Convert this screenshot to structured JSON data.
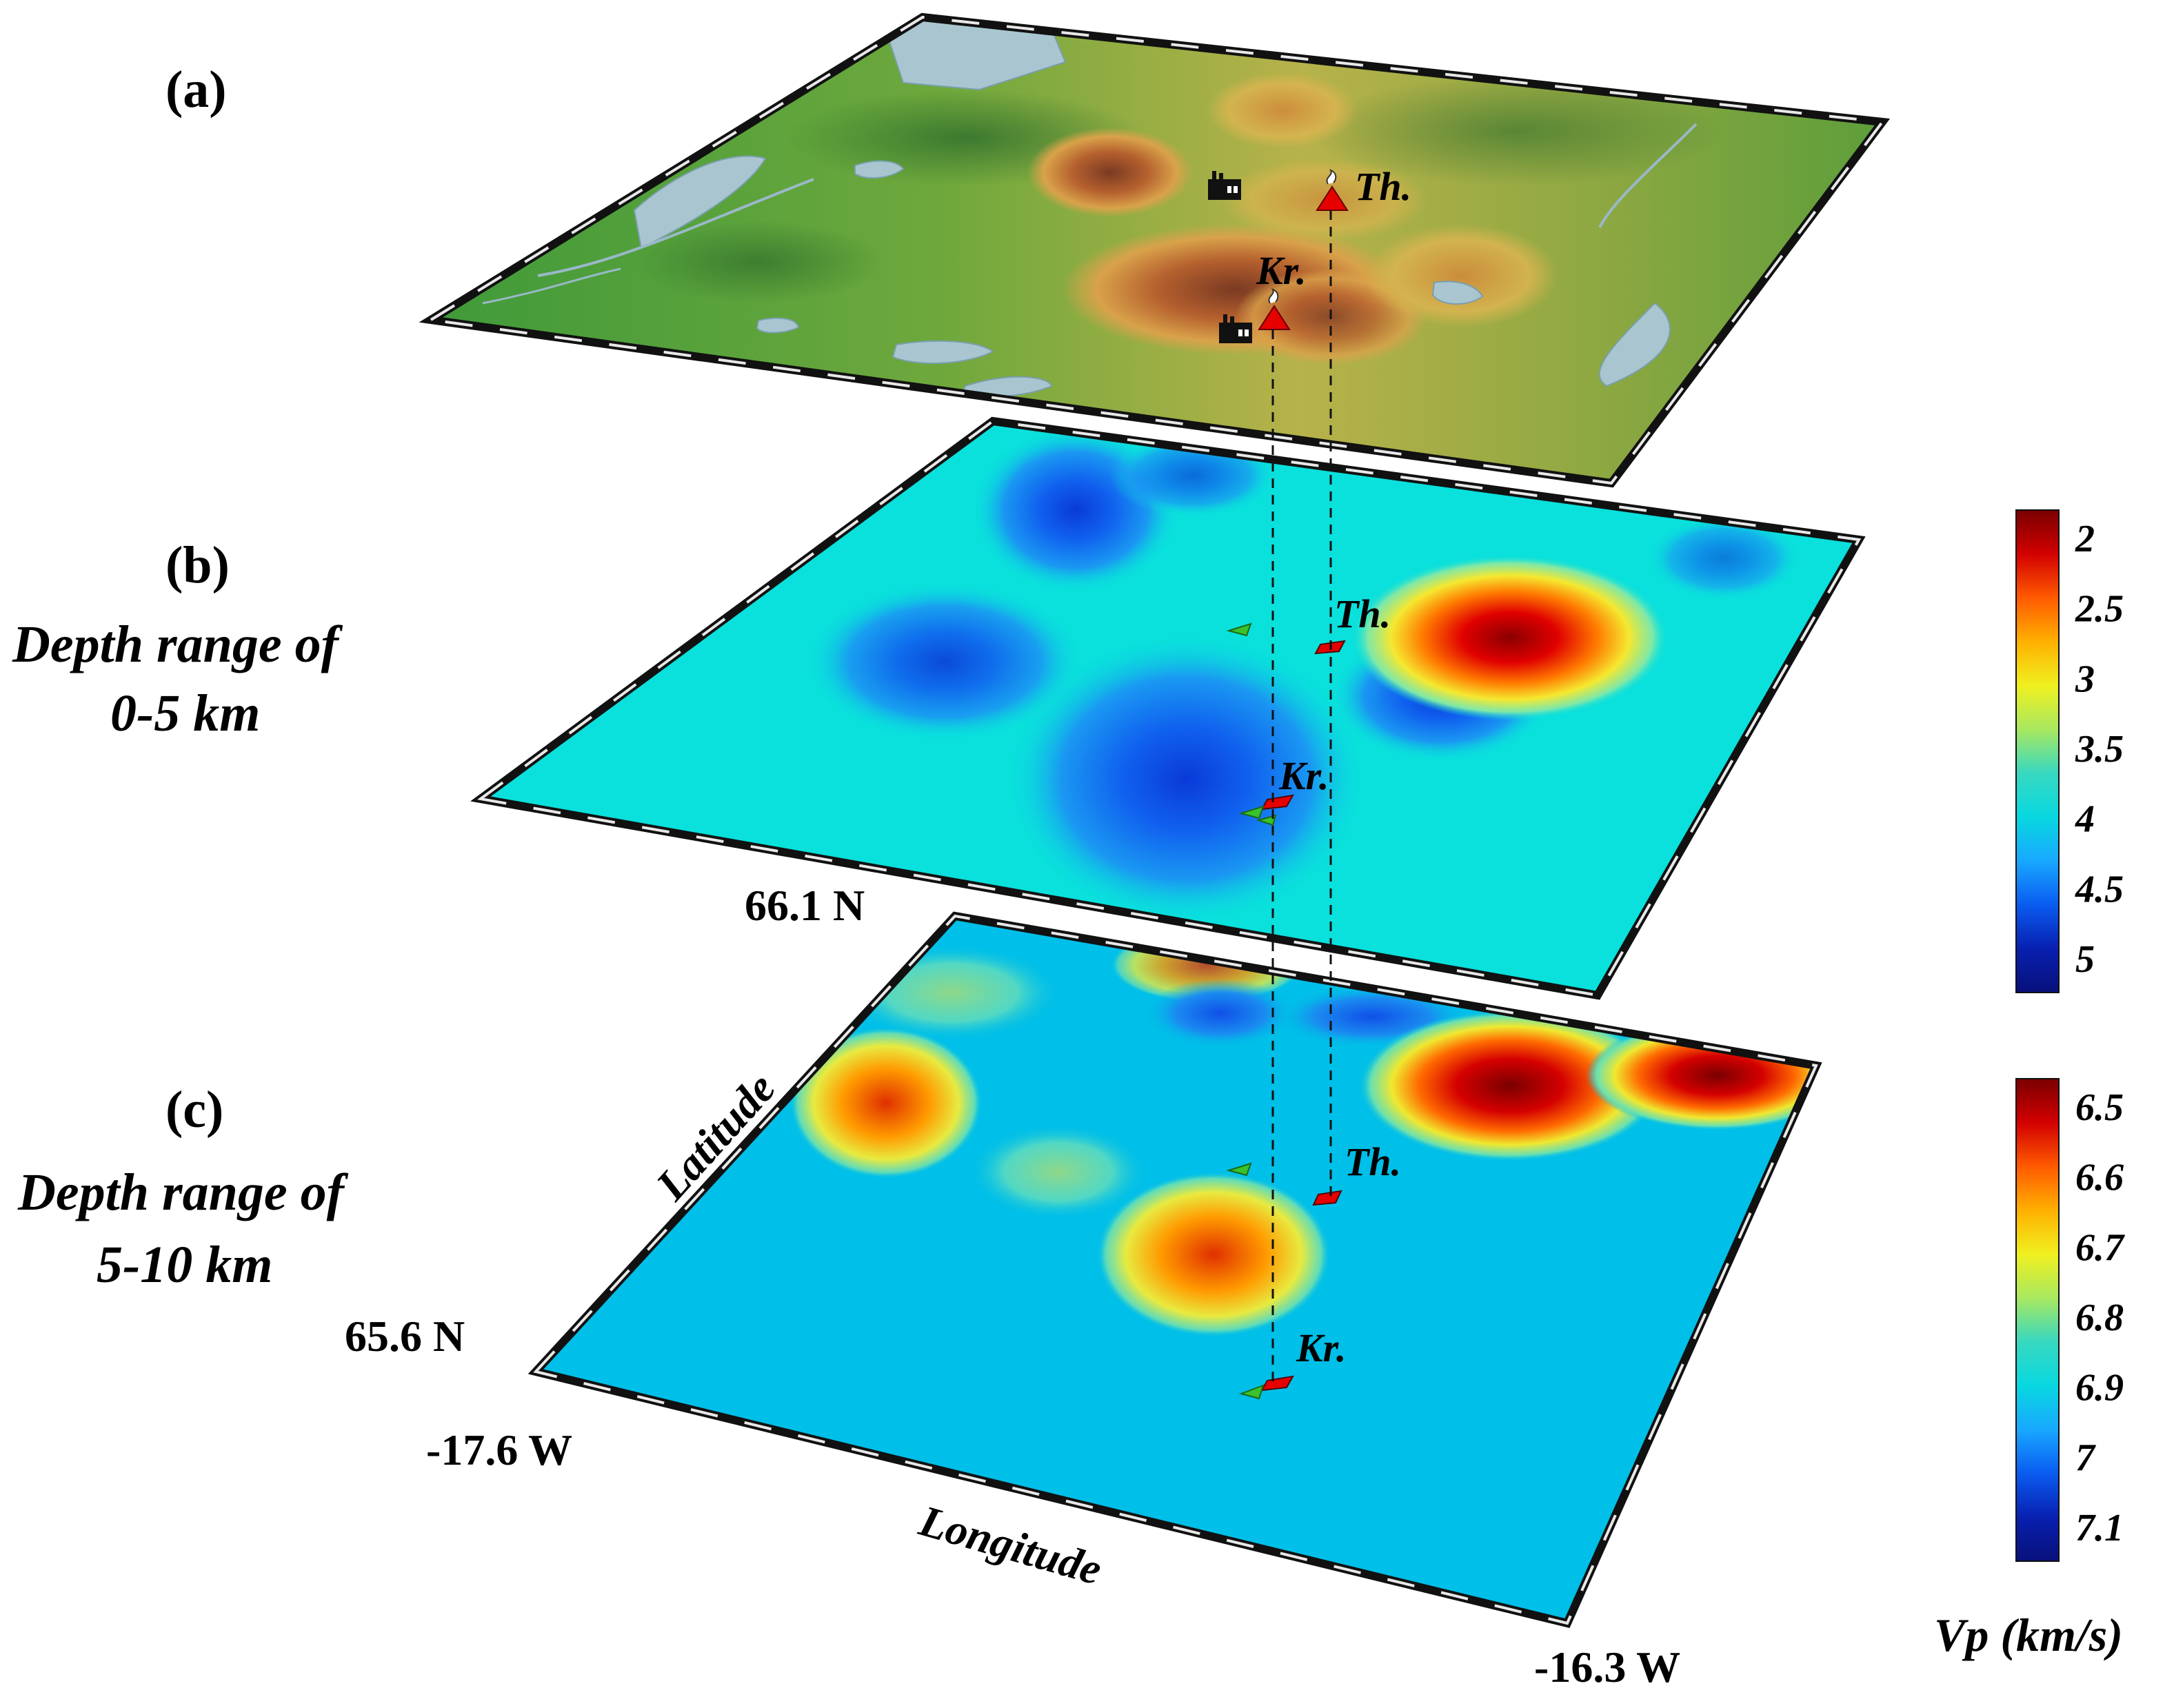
{
  "panels": {
    "a": {
      "label": "(a)"
    },
    "b": {
      "label": "(b)",
      "caption_line1": "Depth range  of",
      "caption_line2": "0-5 km"
    },
    "c": {
      "label": "(c)",
      "caption_line1": "Depth range of",
      "caption_line2": "5-10 km"
    }
  },
  "volcanoes": {
    "theistareykir": "Th.",
    "krafla": "Kr."
  },
  "axes": {
    "lat_north": "66.1 N",
    "lat_south": "65.6 N",
    "lon_west": "-17.6 W",
    "lon_east": "-16.3 W",
    "latitude_label": "Latitude",
    "longitude_label": "Longitude"
  },
  "colorbar_b": {
    "ticks": [
      "2",
      "2.5",
      "3",
      "3.5",
      "4",
      "4.5",
      "5"
    ],
    "stops": [
      "#7a0000",
      "#d20000",
      "#ff5a00",
      "#ffb000",
      "#f0f020",
      "#a8e860",
      "#38d8c0",
      "#08d8e0",
      "#18a8ff",
      "#0a5cf0",
      "#0820b0",
      "#08107a"
    ]
  },
  "colorbar_c": {
    "ticks": [
      "6.5",
      "6.6",
      "6.7",
      "6.8",
      "6.9",
      "7",
      "7.1"
    ],
    "stops": [
      "#7a0000",
      "#d20000",
      "#ff5a00",
      "#ffb000",
      "#f0f020",
      "#a8e860",
      "#38d8c0",
      "#08d8e0",
      "#18a8ff",
      "#0a5cf0",
      "#0820b0",
      "#08107a"
    ]
  },
  "unit_label": "Vp (km/s)",
  "colors": {
    "bg_b": "#0ae0dc",
    "bg_c": "#00bfe8",
    "volcano_marker": "#e60000",
    "station_marker": "#39c22e"
  }
}
